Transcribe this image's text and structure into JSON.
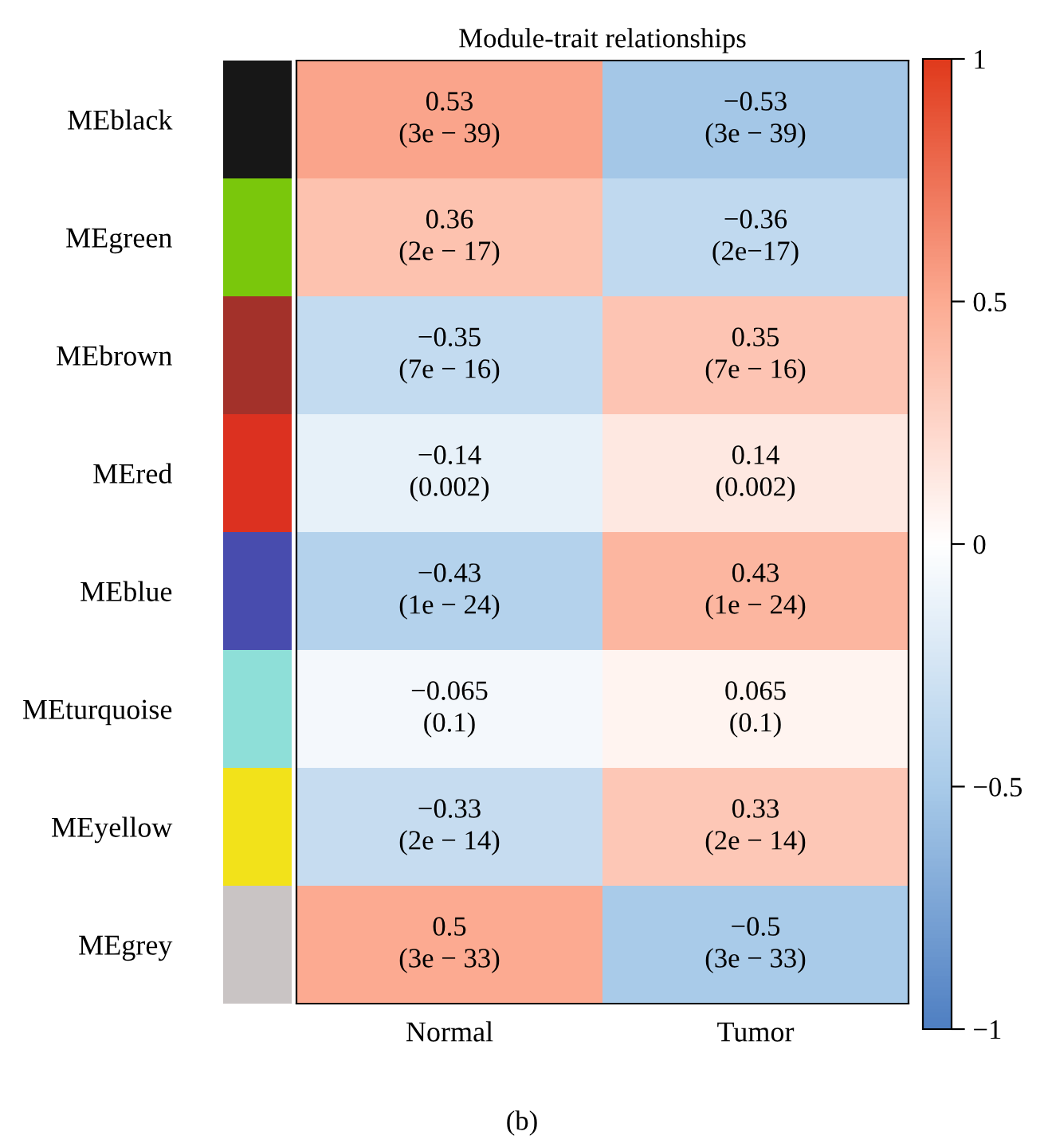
{
  "chart_data": {
    "type": "heatmap",
    "title": "Module-trait relationships",
    "categories": [
      "Normal",
      "Tumor"
    ],
    "y_categories": [
      "MEblack",
      "MEgreen",
      "MEbrown",
      "MEred",
      "MEblue",
      "MEturquoise",
      "MEyellow",
      "MEgrey"
    ],
    "colors": [
      "#171717",
      "#7ac70c",
      "#a3312a",
      "#dc3120",
      "#484cae",
      "#8edfd8",
      "#f2e21a",
      "#c9c4c4"
    ],
    "cells": [
      [
        0.53,
        -0.53
      ],
      [
        0.36,
        -0.36
      ],
      [
        -0.35,
        0.35
      ],
      [
        -0.14,
        0.14
      ],
      [
        -0.43,
        0.43
      ],
      [
        -0.065,
        0.065
      ],
      [
        -0.33,
        0.33
      ],
      [
        0.5,
        -0.5
      ]
    ],
    "cell_labels": [
      [
        "0.53\n(3e − 39)",
        "−0.53\n(3e − 39)"
      ],
      [
        "0.36\n(2e − 17)",
        "−0.36\n(2e−17)"
      ],
      [
        "−0.35\n(7e − 16)",
        "0.35\n(7e − 16)"
      ],
      [
        "−0.14\n(0.002)",
        "0.14\n(0.002)"
      ],
      [
        "−0.43\n(1e − 24)",
        "0.43\n(1e − 24)"
      ],
      [
        "−0.065\n(0.1)",
        "0.065\n(0.1)"
      ],
      [
        "−0.33\n(2e − 14)",
        "0.33\n(2e − 14)"
      ],
      [
        "0.5\n(3e − 33)",
        "−0.5\n(3e − 33)"
      ]
    ],
    "clim": [
      -1,
      1
    ],
    "cticks": [
      {
        "value": -1,
        "label": "−1"
      },
      {
        "value": -0.5,
        "label": "−0.5"
      },
      0,
      0.5,
      1
    ],
    "annotations": [
      "(b)"
    ]
  }
}
